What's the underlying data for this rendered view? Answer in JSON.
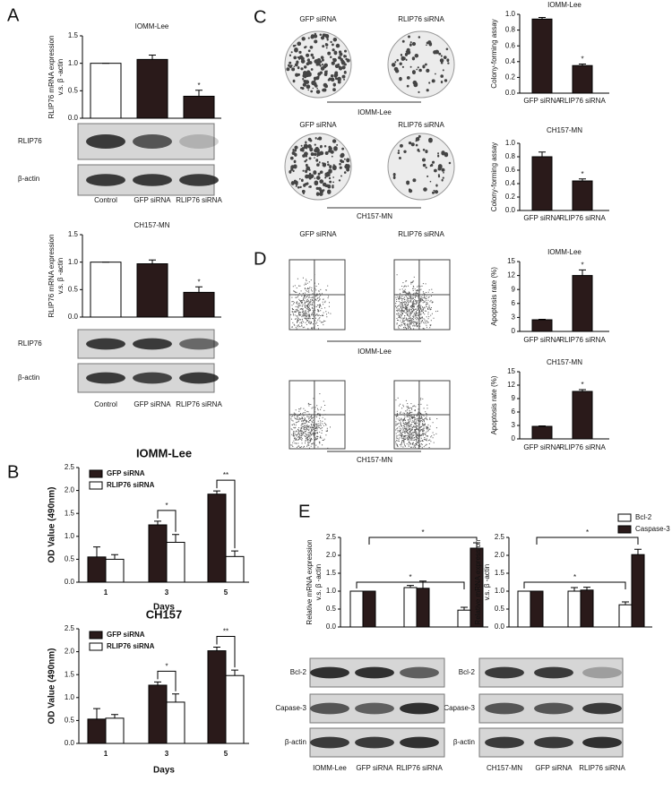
{
  "panels": [
    "A",
    "B",
    "C",
    "D",
    "E"
  ],
  "blots": [
    {
      "rows": [
        "RLIP76",
        "β-actin"
      ]
    },
    {
      "rows": [
        "RLIP76",
        "β-actin"
      ]
    },
    {
      "rows": [
        "Bcl-2",
        "Capase-3",
        "β-actin"
      ]
    },
    {
      "rows": [
        "Bcl-2",
        "Capase-3",
        "β-actin"
      ]
    }
  ],
  "images": [
    {
      "labels": [
        "GFP siRNA",
        "RLIP76 siRNA"
      ],
      "caption": "IOMM-Lee"
    },
    {
      "labels": [
        "GFP siRNA",
        "RLIP76 siRNA"
      ],
      "caption": "CH157-MN"
    },
    {
      "labels": [
        "GFP siRNA",
        "RLIP76 siRNA"
      ],
      "caption": "IOMM-Lee"
    },
    {
      "caption": "CH157-MN"
    }
  ],
  "chart_data": [
    {
      "type": "bar",
      "title": "IOMM-Lee",
      "ylabel": [
        "RLIP76 mRNA expression",
        "v.s. β -actin"
      ],
      "categories": [
        "Control",
        "GFP siRNA",
        "RLIP76 siRNA"
      ],
      "values": [
        1.0,
        1.07,
        0.4
      ],
      "errors": [
        0,
        0.08,
        0.11
      ],
      "colors": [
        "#ffffff",
        "#2a1a1a",
        "#2a1a1a"
      ],
      "ylim": [
        0,
        1.5
      ],
      "yticks": [
        {
          "value": 0,
          "label": "0.0"
        },
        {
          "value": 0.5,
          "label": "0.5"
        },
        {
          "value": 1,
          "label": "1.0"
        },
        {
          "value": 1.5,
          "label": "1.5"
        }
      ],
      "annotations": [
        "*"
      ]
    },
    {
      "type": "bar",
      "title": "CH157-MN",
      "ylabel": [
        "RLIP76 mRNA expression",
        "v.s. β -actin"
      ],
      "categories": [
        "Control",
        "GFP siRNA",
        "RLIP76 siRNA"
      ],
      "values": [
        1.0,
        0.97,
        0.45
      ],
      "errors": [
        0,
        0.07,
        0.1
      ],
      "colors": [
        "#ffffff",
        "#2a1a1a",
        "#2a1a1a"
      ],
      "ylim": [
        0,
        1.5
      ],
      "yticks": [
        {
          "value": 0,
          "label": "0.0"
        },
        {
          "value": 0.5,
          "label": "0.5"
        },
        {
          "value": 1,
          "label": "1.0"
        },
        {
          "value": 1.5,
          "label": "1.5"
        }
      ],
      "annotations": [
        "*"
      ]
    },
    {
      "type": "bar",
      "title": "IOMM-Lee",
      "ylabel": [
        "OD Value (490nm)"
      ],
      "xlabel": "Days",
      "categories": [
        "1",
        "3",
        "5"
      ],
      "series": [
        {
          "name": "GFP siRNA",
          "color": "#2a1a1a",
          "values": [
            0.55,
            1.25,
            1.92
          ],
          "errors": [
            0.22,
            0.08,
            0.07
          ]
        },
        {
          "name": "RLIP76 siRNA",
          "color": "#ffffff",
          "values": [
            0.5,
            0.87,
            0.56
          ],
          "errors": [
            0.1,
            0.17,
            0.12
          ]
        }
      ],
      "ylim": [
        0,
        2.5
      ],
      "yticks": [
        {
          "value": 0,
          "label": "0.0"
        },
        {
          "value": 0.5,
          "label": "0.5"
        },
        {
          "value": 1,
          "label": "1.0"
        },
        {
          "value": 1.5,
          "label": "1.5"
        },
        {
          "value": 2,
          "label": "2.0"
        },
        {
          "value": 2.5,
          "label": "2.5"
        }
      ],
      "annotations": [
        "*",
        "**"
      ]
    },
    {
      "type": "bar",
      "title": "CH157",
      "ylabel": [
        "OD Value (490nm)"
      ],
      "xlabel": "Days",
      "categories": [
        "1",
        "3",
        "5"
      ],
      "series": [
        {
          "name": "GFP siRNA",
          "color": "#2a1a1a",
          "values": [
            0.53,
            1.27,
            2.02
          ],
          "errors": [
            0.23,
            0.07,
            0.08
          ]
        },
        {
          "name": "RLIP76 siRNA",
          "color": "#ffffff",
          "values": [
            0.55,
            0.9,
            1.48
          ],
          "errors": [
            0.08,
            0.18,
            0.12
          ]
        }
      ],
      "ylim": [
        0,
        2.5
      ],
      "yticks": [
        {
          "value": 0,
          "label": "0.0"
        },
        {
          "value": 0.5,
          "label": "0.5"
        },
        {
          "value": 1,
          "label": "1.0"
        },
        {
          "value": 1.5,
          "label": "1.5"
        },
        {
          "value": 2,
          "label": "2.0"
        },
        {
          "value": 2.5,
          "label": "2.5"
        }
      ],
      "annotations": [
        "*",
        "**"
      ]
    },
    {
      "type": "bar",
      "title": "IOMM-Lee",
      "ylabel": [
        "Colony-forming assay"
      ],
      "categories": [
        "GFP siRNA",
        "RLIP76 siRNA"
      ],
      "values": [
        0.94,
        0.35
      ],
      "errors": [
        0.02,
        0.02
      ],
      "colors": [
        "#2a1a1a",
        "#2a1a1a"
      ],
      "ylim": [
        0,
        1
      ],
      "yticks": [
        {
          "value": 0,
          "label": "0.0"
        },
        {
          "value": 0.2,
          "label": "0.2"
        },
        {
          "value": 0.4,
          "label": "0.4"
        },
        {
          "value": 0.6,
          "label": "0.6"
        },
        {
          "value": 0.8,
          "label": "0.8"
        },
        {
          "value": 1,
          "label": "1.0"
        }
      ],
      "annotations": [
        "*"
      ]
    },
    {
      "type": "bar",
      "title": "CH157-MN",
      "ylabel": [
        "Colony-forming assay"
      ],
      "categories": [
        "GFP siRNA",
        "RLIP76 siRNA"
      ],
      "values": [
        0.8,
        0.44
      ],
      "errors": [
        0.07,
        0.03
      ],
      "colors": [
        "#2a1a1a",
        "#2a1a1a"
      ],
      "ylim": [
        0,
        1
      ],
      "yticks": [
        {
          "value": 0,
          "label": "0.0"
        },
        {
          "value": 0.2,
          "label": "0.2"
        },
        {
          "value": 0.4,
          "label": "0.4"
        },
        {
          "value": 0.6,
          "label": "0.6"
        },
        {
          "value": 0.8,
          "label": "0.8"
        },
        {
          "value": 1,
          "label": "1.0"
        }
      ],
      "annotations": [
        "*"
      ]
    },
    {
      "type": "bar",
      "title": "IOMM-Lee",
      "ylabel": [
        "Apoptosis rate (%)"
      ],
      "categories": [
        "GFP siRNA",
        "RLIP76 siRNA"
      ],
      "values": [
        2.5,
        12
      ],
      "errors": [
        0.1,
        1.2
      ],
      "colors": [
        "#2a1a1a",
        "#2a1a1a"
      ],
      "ylim": [
        0,
        15
      ],
      "yticks": [
        0,
        3,
        6,
        9,
        12,
        15
      ],
      "annotations": [
        "*"
      ]
    },
    {
      "type": "bar",
      "title": "CH157-MN",
      "ylabel": [
        "Apoptosis rate (%)"
      ],
      "categories": [
        "GFP siRNA",
        "RLIP76 siRNA"
      ],
      "values": [
        2.8,
        10.6
      ],
      "errors": [
        0.1,
        0.4
      ],
      "colors": [
        "#2a1a1a",
        "#2a1a1a"
      ],
      "ylim": [
        0,
        15
      ],
      "yticks": [
        0,
        3,
        6,
        9,
        12,
        15
      ],
      "annotations": [
        "*"
      ]
    },
    {
      "type": "bar",
      "ylabel": [
        "Relative mRNA expression",
        "v.s. β -actin"
      ],
      "categories": [
        "IOMM-Lee",
        "GFP siRNA",
        "RLIP76 siRNA"
      ],
      "series": [
        {
          "color": "#ffffff",
          "values": [
            1.0,
            1.1,
            0.47
          ],
          "errors": [
            0,
            0.06,
            0.08
          ]
        },
        {
          "color": "#2a1a1a",
          "values": [
            1.0,
            1.08,
            2.2
          ],
          "errors": [
            0,
            0.2,
            0.15
          ]
        }
      ],
      "ylim": [
        0,
        2.5
      ],
      "yticks": [
        {
          "value": 0,
          "label": "0.0"
        },
        {
          "value": 0.5,
          "label": "0.5"
        },
        {
          "value": 1,
          "label": "1.0"
        },
        {
          "value": 1.5,
          "label": "1.5"
        },
        {
          "value": 2,
          "label": "2.0"
        },
        {
          "value": 2.5,
          "label": "2.5"
        }
      ],
      "annotations": [
        "*",
        "*"
      ]
    },
    {
      "type": "bar",
      "ylabel": [
        "Relative mRNA expression",
        "v.s. β -actin"
      ],
      "categories": [
        "CH157-MN",
        "GFP siRNA",
        "RLIP76 siRNA"
      ],
      "series": [
        {
          "name": "Bcl-2",
          "color": "#ffffff",
          "values": [
            1.0,
            1.0,
            0.62
          ],
          "errors": [
            0,
            0.1,
            0.08
          ]
        },
        {
          "name": "Caspase-3",
          "color": "#2a1a1a",
          "values": [
            1.0,
            1.03,
            2.02
          ],
          "errors": [
            0,
            0.08,
            0.15
          ]
        }
      ],
      "ylim": [
        0,
        2.5
      ],
      "yticks": [
        {
          "value": 0,
          "label": "0.0"
        },
        {
          "value": 0.5,
          "label": "0.5"
        },
        {
          "value": 1,
          "label": "1.0"
        },
        {
          "value": 1.5,
          "label": "1.5"
        },
        {
          "value": 2,
          "label": "2.0"
        },
        {
          "value": 2.5,
          "label": "2.5"
        }
      ],
      "annotations": [
        "*",
        "*"
      ]
    }
  ]
}
